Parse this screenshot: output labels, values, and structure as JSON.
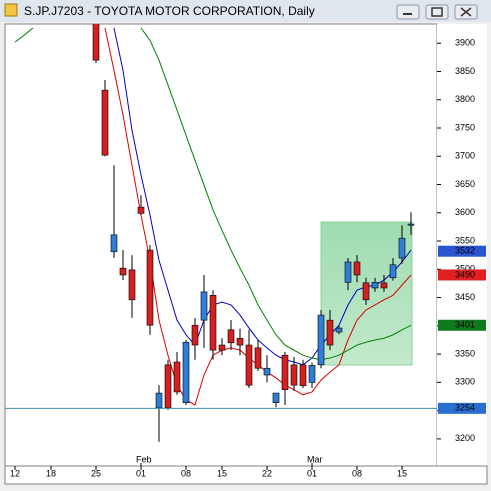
{
  "chart_data": {
    "type": "candlestick",
    "title": "S.JP.J7203 - TOYOTA MOTOR CORPORATION, Daily",
    "categories": [
      "12",
      null,
      null,
      null,
      "18",
      null,
      null,
      null,
      null,
      "25",
      null,
      null,
      null,
      null,
      "01",
      null,
      null,
      null,
      null,
      "08",
      null,
      null,
      null,
      "15",
      null,
      null,
      null,
      null,
      "22",
      null,
      null,
      null,
      null,
      "01",
      null,
      null,
      null,
      null,
      "08",
      null,
      null,
      null,
      null,
      "15",
      null,
      null
    ],
    "months": [
      null,
      null,
      null,
      null,
      null,
      null,
      null,
      null,
      null,
      null,
      null,
      null,
      null,
      null,
      "Feb",
      null,
      null,
      null,
      null,
      null,
      null,
      null,
      null,
      null,
      null,
      null,
      null,
      null,
      null,
      null,
      null,
      null,
      null,
      "Mar",
      null,
      null,
      null,
      null,
      null,
      null,
      null,
      null,
      null,
      null,
      null,
      null
    ],
    "open": [
      null,
      null,
      null,
      null,
      null,
      null,
      null,
      null,
      null,
      3935,
      3817,
      3531,
      3502,
      3499,
      3610,
      3534,
      3255,
      3331,
      3336,
      3264,
      3401,
      3410,
      3454,
      3366,
      3393,
      3378,
      3366,
      3361,
      3313,
      3264,
      3348,
      3331,
      3331,
      3300,
      3331,
      3410,
      3389,
      3477,
      3513,
      3476,
      3467,
      3476,
      3485,
      3520,
      3578,
      null
    ],
    "high": [
      null,
      null,
      null,
      null,
      null,
      null,
      null,
      null,
      null,
      3950,
      3835,
      3684,
      3534,
      3525,
      3631,
      3543,
      3295,
      3340,
      3354,
      3375,
      3414,
      3490,
      3463,
      3378,
      3410,
      3395,
      3393,
      3375,
      3348,
      3280,
      3354,
      3345,
      3340,
      3335,
      3428,
      3428,
      3400,
      3520,
      3525,
      3485,
      3485,
      3490,
      3520,
      3578,
      3601,
      null
    ],
    "low": [
      null,
      null,
      null,
      null,
      null,
      null,
      null,
      null,
      null,
      3865,
      3700,
      3520,
      3481,
      3414,
      3596,
      3384,
      3195,
      3251,
      3278,
      3260,
      3340,
      3361,
      3340,
      3348,
      3357,
      3348,
      3290,
      3320,
      3300,
      3256,
      3260,
      3285,
      3290,
      3290,
      3325,
      3357,
      3385,
      3463,
      3477,
      3437,
      3460,
      3460,
      3480,
      3510,
      3561,
      null
    ],
    "close": [
      null,
      null,
      null,
      null,
      null,
      null,
      null,
      null,
      null,
      3870,
      3702,
      3561,
      3490,
      3446,
      3599,
      3401,
      3281,
      3255,
      3283,
      3371,
      3366,
      3460,
      3357,
      3357,
      3370,
      3366,
      3295,
      3325,
      3325,
      3281,
      3287,
      3295,
      3294,
      3330,
      3419,
      3366,
      3396,
      3513,
      3490,
      3446,
      3477,
      3467,
      3508,
      3555,
      3580,
      null
    ],
    "up_color": "#2f7fd8",
    "down_color": "#d42020",
    "moving_averages": [
      {
        "color": "#0000cc",
        "values": [
          null,
          null,
          null,
          null,
          null,
          null,
          null,
          null,
          null,
          null,
          null,
          3927,
          3852,
          3746,
          3667,
          3596,
          3516,
          3463,
          3410,
          3384,
          3366,
          3410,
          3437,
          3442,
          3437,
          3419,
          3396,
          3375,
          3361,
          3348,
          3340,
          3336,
          3331,
          3343,
          3366,
          3384,
          3401,
          3437,
          3463,
          3469,
          3472,
          3481,
          3495,
          3513,
          3534,
          null
        ]
      },
      {
        "color": "#dd0000",
        "values": [
          null,
          null,
          null,
          null,
          null,
          null,
          null,
          null,
          null,
          null,
          3927,
          3852,
          3773,
          3684,
          3596,
          3516,
          3410,
          3348,
          3295,
          3269,
          3260,
          3313,
          3348,
          3357,
          3361,
          3357,
          3343,
          3331,
          3318,
          3308,
          3295,
          3287,
          3278,
          3283,
          3304,
          3318,
          3331,
          3375,
          3410,
          3428,
          3437,
          3446,
          3454,
          3472,
          3490,
          null
        ]
      },
      {
        "color": "#008000",
        "values": [
          3902,
          3914,
          3927,
          null,
          null,
          null,
          null,
          null,
          null,
          null,
          null,
          null,
          null,
          null,
          3927,
          3905,
          3870,
          3826,
          3782,
          3737,
          3693,
          3649,
          3605,
          3569,
          3534,
          3502,
          3472,
          3437,
          3410,
          3384,
          3366,
          3357,
          3348,
          3343,
          3340,
          3343,
          3348,
          3357,
          3366,
          3371,
          3375,
          3378,
          3384,
          3393,
          3401,
          null
        ]
      }
    ],
    "price_labels": [
      {
        "value": 3532,
        "color": "#2a55d0"
      },
      {
        "value": 3490,
        "color": "#e02020"
      },
      {
        "value": 3401,
        "color": "#0f7a1e"
      },
      {
        "value": 3254,
        "color": "#2a6fd0",
        "line": true
      }
    ],
    "ylim": [
      3152,
      3934
    ],
    "yticks": [
      3200,
      3250,
      3300,
      3350,
      3400,
      3450,
      3500,
      3550,
      3600,
      3650,
      3700,
      3750,
      3800,
      3850,
      3900
    ]
  }
}
